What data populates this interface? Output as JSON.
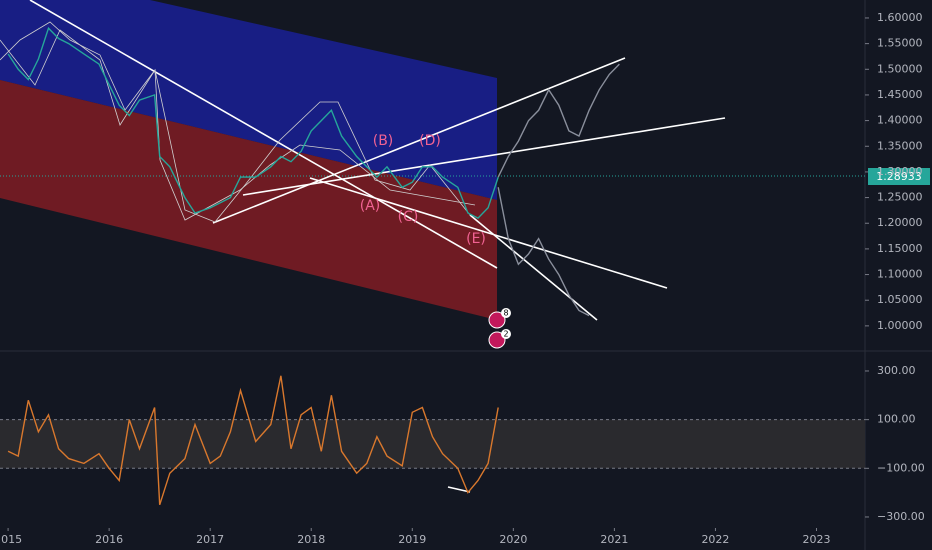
{
  "chart_data": [
    {
      "type": "line",
      "x": [
        2015.0,
        2015.1,
        2015.2,
        2015.3,
        2015.4,
        2015.5,
        2015.6,
        2015.75,
        2015.9,
        2016.0,
        2016.1,
        2016.2,
        2016.3,
        2016.45,
        2016.5,
        2016.6,
        2016.75,
        2016.85,
        2017.0,
        2017.1,
        2017.2,
        2017.3,
        2017.45,
        2017.6,
        2017.7,
        2017.8,
        2017.9,
        2018.0,
        2018.1,
        2018.2,
        2018.3,
        2018.45,
        2018.55,
        2018.65,
        2018.75,
        2018.9,
        2019.0,
        2019.1,
        2019.2,
        2019.3,
        2019.45,
        2019.55,
        2019.65,
        2019.75,
        2019.85
      ],
      "series": [
        {
          "color": "#26a69a",
          "values": [
            1.53,
            1.5,
            1.48,
            1.52,
            1.58,
            1.56,
            1.55,
            1.53,
            1.51,
            1.47,
            1.43,
            1.41,
            1.44,
            1.45,
            1.33,
            1.31,
            1.25,
            1.22,
            1.23,
            1.24,
            1.25,
            1.29,
            1.29,
            1.31,
            1.33,
            1.32,
            1.34,
            1.38,
            1.4,
            1.42,
            1.37,
            1.33,
            1.31,
            1.29,
            1.31,
            1.27,
            1.28,
            1.31,
            1.31,
            1.29,
            1.27,
            1.22,
            1.21,
            1.23,
            1.29
          ]
        },
        {
          "color": "#8a8f9c",
          "x": [
            2019.85,
            2019.95,
            2020.05,
            2020.15,
            2020.25,
            2020.35,
            2020.45,
            2020.55,
            2020.65,
            2020.75,
            2020.85,
            2020.95,
            2021.05
          ],
          "values": [
            1.29,
            1.33,
            1.36,
            1.4,
            1.42,
            1.46,
            1.43,
            1.38,
            1.37,
            1.42,
            1.46,
            1.49,
            1.51
          ]
        },
        {
          "color": "#8a8f9c",
          "x": [
            2019.85,
            2019.95,
            2020.05,
            2020.15,
            2020.25,
            2020.35,
            2020.45,
            2020.55,
            2020.65,
            2020.75
          ],
          "values": [
            1.27,
            1.17,
            1.12,
            1.14,
            1.17,
            1.13,
            1.1,
            1.06,
            1.03,
            1.02
          ]
        }
      ],
      "xlim": [
        2014.92,
        2023.48
      ],
      "ylim": [
        0.953,
        1.635
      ],
      "yticks": [
        {
          "value": 1.0,
          "label": "1.00000"
        },
        {
          "value": 1.05,
          "label": "1.05000"
        },
        {
          "value": 1.1,
          "label": "1.10000"
        },
        {
          "value": 1.15,
          "label": "1.15000"
        },
        {
          "value": 1.2,
          "label": "1.20000"
        },
        {
          "value": 1.25,
          "label": "1.25000"
        },
        {
          "value": 1.3,
          "label": "1.30000"
        },
        {
          "value": 1.35,
          "label": "1.35000"
        },
        {
          "value": 1.4,
          "label": "1.40000"
        },
        {
          "value": 1.45,
          "label": "1.45000"
        },
        {
          "value": 1.5,
          "label": "1.50000"
        },
        {
          "value": 1.55,
          "label": "1.55000"
        },
        {
          "value": 1.6,
          "label": "1.60000"
        }
      ],
      "last_price": 1.28933,
      "annotations": [
        "(A)",
        "(B)",
        "(C)",
        "(D)",
        "(E)"
      ],
      "event_badges": [
        8,
        2
      ]
    },
    {
      "type": "line",
      "x": [
        2015.0,
        2015.1,
        2015.2,
        2015.3,
        2015.4,
        2015.5,
        2015.6,
        2015.75,
        2015.9,
        2016.0,
        2016.1,
        2016.2,
        2016.3,
        2016.45,
        2016.5,
        2016.6,
        2016.75,
        2016.85,
        2017.0,
        2017.1,
        2017.2,
        2017.3,
        2017.45,
        2017.6,
        2017.7,
        2017.8,
        2017.9,
        2018.0,
        2018.1,
        2018.2,
        2018.3,
        2018.45,
        2018.55,
        2018.65,
        2018.75,
        2018.9,
        2019.0,
        2019.1,
        2019.2,
        2019.3,
        2019.45,
        2019.55,
        2019.65,
        2019.75,
        2019.85
      ],
      "series": [
        {
          "color": "#d9782d",
          "values": [
            -30,
            -50,
            180,
            50,
            120,
            -20,
            -60,
            -80,
            -40,
            -100,
            -150,
            100,
            -20,
            150,
            -250,
            -120,
            -60,
            80,
            -80,
            -50,
            50,
            220,
            10,
            80,
            280,
            -20,
            120,
            150,
            -30,
            200,
            -30,
            -120,
            -80,
            30,
            -50,
            -90,
            130,
            150,
            30,
            -40,
            -100,
            -200,
            -150,
            -80,
            150
          ]
        }
      ],
      "xlim": [
        2014.92,
        2023.48
      ],
      "xticks": [
        2015,
        2016,
        2017,
        2018,
        2019,
        2020,
        2021,
        2022,
        2023
      ],
      "ylim": [
        -333,
        378
      ],
      "yticks": [
        {
          "value": 300,
          "label": "300.00"
        },
        {
          "value": 100,
          "label": "100.00"
        },
        {
          "value": -100,
          "label": "−100.00"
        },
        {
          "value": -300,
          "label": "−300.00"
        }
      ],
      "band": [
        -100,
        100
      ]
    }
  ]
}
